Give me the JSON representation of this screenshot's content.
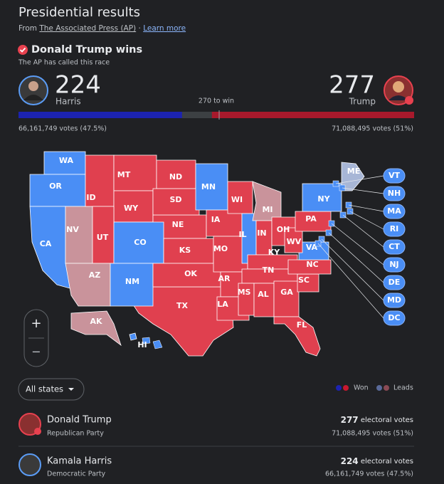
{
  "header": {
    "title": "Presidential results",
    "source_prefix": "From",
    "source": "The Associated Press (AP)",
    "separator": "·",
    "learn_more": "Learn more"
  },
  "call": {
    "headline": "Donald Trump wins",
    "subtext": "The AP has called this race"
  },
  "candidates": [
    {
      "name": "Donald Trump",
      "short_name": "Trump",
      "party": "Republican Party",
      "electoral_votes": 277,
      "popular_votes": "71,088,495 votes (51%)",
      "color": "#e8414f",
      "bar_color": "#a8192c"
    },
    {
      "name": "Kamala Harris",
      "short_name": "Harris",
      "party": "Democratic Party",
      "electoral_votes": 224,
      "popular_votes": "66,161,749 votes (47.5%)",
      "color": "#5b9cf5",
      "bar_color": "#1c23b0"
    }
  ],
  "threshold": "270 to win",
  "electoral_label": "electoral votes",
  "map": {
    "states": [
      {
        "label": "TX",
        "color": "#e0404f"
      },
      {
        "label": "WA",
        "color": "#4a8ef5"
      },
      {
        "label": "OR",
        "color": "#4a8ef5"
      },
      {
        "label": "CA",
        "color": "#4a8ef5"
      },
      {
        "label": "NV",
        "color": "#c9939b"
      },
      {
        "label": "ID",
        "color": "#e0404f"
      },
      {
        "label": "MT",
        "color": "#e0404f"
      },
      {
        "label": "WY",
        "color": "#e0404f"
      },
      {
        "label": "UT",
        "color": "#e0404f"
      },
      {
        "label": "NE",
        "color": "#e0404f"
      },
      {
        "label": "CO",
        "color": "#4a8ef5"
      },
      {
        "label": "AZ",
        "color": "#c9939b"
      },
      {
        "label": "NM",
        "color": "#4a8ef5"
      },
      {
        "label": "ND",
        "color": "#e0404f"
      },
      {
        "label": "SD",
        "color": "#e0404f"
      },
      {
        "label": "KS",
        "color": "#e0404f"
      },
      {
        "label": "OK",
        "color": "#e0404f"
      },
      {
        "label": "MN",
        "color": "#4a8ef5"
      },
      {
        "label": "IA",
        "color": "#e0404f"
      },
      {
        "label": "MO",
        "color": "#e0404f"
      },
      {
        "label": "AR",
        "color": "#e0404f"
      },
      {
        "label": "LA",
        "color": "#e0404f"
      },
      {
        "label": "WI",
        "color": "#e0404f"
      },
      {
        "label": "IL",
        "color": "#4a8ef5"
      },
      {
        "label": "MI",
        "color": "#c9939b"
      },
      {
        "label": "IN",
        "color": "#e0404f"
      },
      {
        "label": "OH",
        "color": "#e0404f"
      },
      {
        "label": "KY",
        "color": "#e0404f"
      },
      {
        "label": "TN",
        "color": "#e0404f"
      },
      {
        "label": "MS",
        "color": "#e0404f"
      },
      {
        "label": "AL",
        "color": "#e0404f"
      },
      {
        "label": "GA",
        "color": "#e0404f"
      },
      {
        "label": "FL",
        "color": "#e0404f"
      },
      {
        "label": "SC",
        "color": "#e0404f"
      },
      {
        "label": "NC",
        "color": "#e0404f"
      },
      {
        "label": "VA",
        "color": "#4a8ef5"
      },
      {
        "label": "WV",
        "color": "#e0404f"
      },
      {
        "label": "PA",
        "color": "#e0404f"
      },
      {
        "label": "NY",
        "color": "#4a8ef5"
      },
      {
        "label": "ME",
        "color": "#a7b6d6"
      },
      {
        "label": "AK",
        "color": "#c9939b"
      },
      {
        "label": "HI",
        "color": "#4a8ef5"
      }
    ],
    "small_states": [
      {
        "label": "VT",
        "color": "#4a8ef5"
      },
      {
        "label": "NH",
        "color": "#4a8ef5"
      },
      {
        "label": "MA",
        "color": "#4a8ef5"
      },
      {
        "label": "RI",
        "color": "#4a8ef5"
      },
      {
        "label": "CT",
        "color": "#4a8ef5"
      },
      {
        "label": "NJ",
        "color": "#4a8ef5"
      },
      {
        "label": "DE",
        "color": "#4a8ef5"
      },
      {
        "label": "MD",
        "color": "#4a8ef5"
      },
      {
        "label": "DC",
        "color": "#4a8ef5"
      }
    ]
  },
  "controls": {
    "zoom_in": "+",
    "zoom_out": "−",
    "filter": "All states"
  },
  "legend": {
    "won": "Won",
    "leads": "Leads"
  }
}
